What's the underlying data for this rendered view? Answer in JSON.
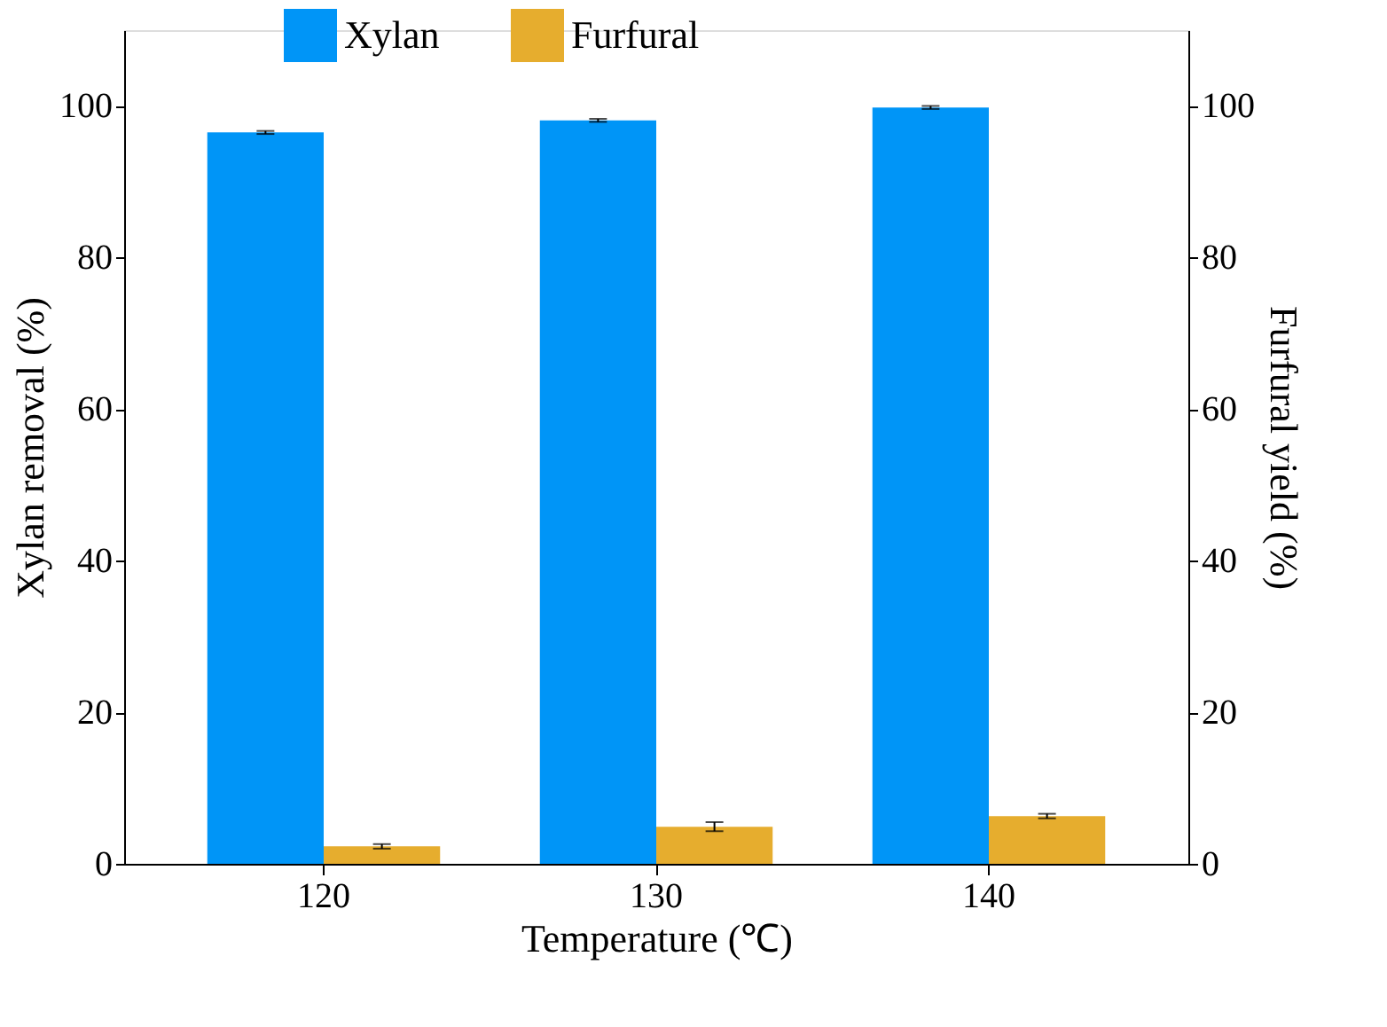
{
  "chart_data": {
    "type": "bar",
    "xlabel": "Temperature (℃)",
    "ylabel": "Xylan removal (%)",
    "y2label": "Furfural yield (%)",
    "categories": [
      "120",
      "130",
      "140"
    ],
    "series": [
      {
        "name": "Xylan",
        "color": "#0095f7",
        "values": [
          96.5,
          98.1,
          99.8
        ],
        "errors": [
          0.2,
          0.2,
          0.2
        ]
      },
      {
        "name": "Furfural",
        "color": "#e6ad2e",
        "values": [
          2.3,
          4.9,
          6.3
        ],
        "errors": [
          0.3,
          0.6,
          0.3
        ],
        "axis": "y2"
      }
    ],
    "ylim": [
      0,
      110
    ],
    "yticks": [
      0,
      20,
      40,
      60,
      80,
      100
    ],
    "y2lim": [
      0,
      110
    ],
    "y2ticks": [
      0,
      20,
      40,
      60,
      80,
      100
    ],
    "legend": "top",
    "grid": false
  }
}
